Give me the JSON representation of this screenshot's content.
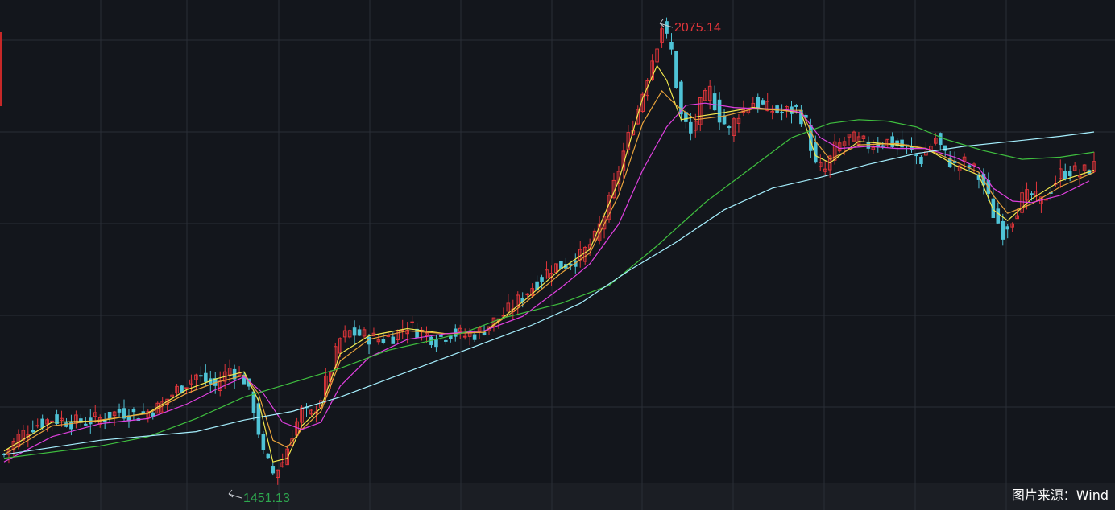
{
  "source": {
    "label": "图片来源：Wind"
  },
  "colors": {
    "background": "#13161c",
    "grid": "#2a2e36",
    "up_candle": "#e0353a",
    "down_candle": "#4fc3d6",
    "high_label": "#e0353a",
    "low_label": "#2ea84f"
  },
  "chart_data": {
    "type": "candlestick",
    "grid": true,
    "ylim": [
      1430,
      2100
    ],
    "annotations": [
      {
        "kind": "high",
        "label": "2075.14",
        "value": 2075.14
      },
      {
        "kind": "low",
        "label": "1451.13",
        "value": 1451.13
      }
    ],
    "price_path": [
      [
        0,
        1480
      ],
      [
        3,
        1505
      ],
      [
        6,
        1520
      ],
      [
        10,
        1530
      ],
      [
        15,
        1525
      ],
      [
        20,
        1530
      ],
      [
        24,
        1540
      ],
      [
        28,
        1535
      ],
      [
        32,
        1545
      ],
      [
        36,
        1570
      ],
      [
        40,
        1590
      ],
      [
        44,
        1575
      ],
      [
        47,
        1600
      ],
      [
        50,
        1585
      ],
      [
        52,
        1545
      ],
      [
        54,
        1480
      ],
      [
        56,
        1455
      ],
      [
        58,
        1470
      ],
      [
        60,
        1510
      ],
      [
        62,
        1540
      ],
      [
        64,
        1535
      ],
      [
        66,
        1560
      ],
      [
        68,
        1600
      ],
      [
        70,
        1640
      ],
      [
        72,
        1650
      ],
      [
        75,
        1645
      ],
      [
        78,
        1640
      ],
      [
        81,
        1645
      ],
      [
        84,
        1660
      ],
      [
        87,
        1650
      ],
      [
        90,
        1640
      ],
      [
        93,
        1650
      ],
      [
        96,
        1645
      ],
      [
        99,
        1650
      ],
      [
        102,
        1665
      ],
      [
        105,
        1680
      ],
      [
        108,
        1700
      ],
      [
        111,
        1720
      ],
      [
        114,
        1740
      ],
      [
        117,
        1745
      ],
      [
        120,
        1755
      ],
      [
        123,
        1780
      ],
      [
        126,
        1830
      ],
      [
        129,
        1900
      ],
      [
        132,
        1960
      ],
      [
        135,
        2030
      ],
      [
        137,
        2075
      ],
      [
        139,
        2040
      ],
      [
        141,
        1950
      ],
      [
        143,
        1925
      ],
      [
        145,
        1965
      ],
      [
        147,
        1985
      ],
      [
        149,
        1950
      ],
      [
        151,
        1930
      ],
      [
        153,
        1955
      ],
      [
        156,
        1970
      ],
      [
        159,
        1960
      ],
      [
        162,
        1955
      ],
      [
        165,
        1960
      ],
      [
        167,
        1940
      ],
      [
        169,
        1880
      ],
      [
        171,
        1875
      ],
      [
        173,
        1905
      ],
      [
        176,
        1920
      ],
      [
        180,
        1910
      ],
      [
        184,
        1915
      ],
      [
        188,
        1905
      ],
      [
        191,
        1890
      ],
      [
        194,
        1920
      ],
      [
        196,
        1895
      ],
      [
        198,
        1880
      ],
      [
        200,
        1885
      ],
      [
        202,
        1875
      ],
      [
        204,
        1855
      ],
      [
        206,
        1815
      ],
      [
        208,
        1790
      ],
      [
        210,
        1810
      ],
      [
        212,
        1835
      ],
      [
        214,
        1840
      ],
      [
        216,
        1830
      ],
      [
        218,
        1850
      ],
      [
        220,
        1870
      ],
      [
        222,
        1875
      ],
      [
        224,
        1870
      ],
      [
        227,
        1880
      ]
    ],
    "moving_averages": [
      {
        "color": "#f2e94e",
        "values": [
          [
            0,
            1485
          ],
          [
            10,
            1525
          ],
          [
            20,
            1527
          ],
          [
            30,
            1538
          ],
          [
            38,
            1570
          ],
          [
            44,
            1585
          ],
          [
            50,
            1595
          ],
          [
            53,
            1555
          ],
          [
            56,
            1470
          ],
          [
            59,
            1475
          ],
          [
            62,
            1520
          ],
          [
            66,
            1545
          ],
          [
            70,
            1620
          ],
          [
            76,
            1645
          ],
          [
            84,
            1655
          ],
          [
            92,
            1648
          ],
          [
            100,
            1650
          ],
          [
            108,
            1692
          ],
          [
            116,
            1738
          ],
          [
            122,
            1765
          ],
          [
            128,
            1860
          ],
          [
            133,
            1975
          ],
          [
            136,
            2020
          ],
          [
            138,
            2000
          ],
          [
            141,
            1945
          ],
          [
            145,
            1950
          ],
          [
            150,
            1955
          ],
          [
            156,
            1962
          ],
          [
            162,
            1958
          ],
          [
            166,
            1955
          ],
          [
            169,
            1895
          ],
          [
            172,
            1885
          ],
          [
            178,
            1915
          ],
          [
            186,
            1910
          ],
          [
            192,
            1905
          ],
          [
            198,
            1882
          ],
          [
            203,
            1868
          ],
          [
            206,
            1820
          ],
          [
            209,
            1805
          ],
          [
            214,
            1835
          ],
          [
            220,
            1860
          ],
          [
            227,
            1875
          ]
        ]
      },
      {
        "color": "#e8a33c",
        "values": [
          [
            0,
            1480
          ],
          [
            10,
            1520
          ],
          [
            20,
            1528
          ],
          [
            30,
            1537
          ],
          [
            38,
            1565
          ],
          [
            44,
            1580
          ],
          [
            50,
            1590
          ],
          [
            53,
            1565
          ],
          [
            56,
            1500
          ],
          [
            59,
            1490
          ],
          [
            62,
            1515
          ],
          [
            66,
            1540
          ],
          [
            70,
            1610
          ],
          [
            76,
            1640
          ],
          [
            84,
            1652
          ],
          [
            92,
            1648
          ],
          [
            100,
            1650
          ],
          [
            108,
            1688
          ],
          [
            116,
            1732
          ],
          [
            122,
            1760
          ],
          [
            128,
            1840
          ],
          [
            133,
            1940
          ],
          [
            137,
            1985
          ],
          [
            140,
            1965
          ],
          [
            144,
            1945
          ],
          [
            150,
            1950
          ],
          [
            156,
            1960
          ],
          [
            162,
            1958
          ],
          [
            166,
            1958
          ],
          [
            169,
            1915
          ],
          [
            172,
            1890
          ],
          [
            178,
            1910
          ],
          [
            186,
            1912
          ],
          [
            192,
            1905
          ],
          [
            198,
            1887
          ],
          [
            203,
            1872
          ],
          [
            206,
            1840
          ],
          [
            209,
            1815
          ],
          [
            214,
            1828
          ],
          [
            220,
            1852
          ],
          [
            227,
            1872
          ]
        ]
      },
      {
        "color": "#e040e0",
        "values": [
          [
            0,
            1470
          ],
          [
            10,
            1505
          ],
          [
            20,
            1523
          ],
          [
            30,
            1530
          ],
          [
            38,
            1550
          ],
          [
            44,
            1570
          ],
          [
            50,
            1588
          ],
          [
            54,
            1565
          ],
          [
            58,
            1525
          ],
          [
            62,
            1515
          ],
          [
            66,
            1525
          ],
          [
            70,
            1575
          ],
          [
            76,
            1615
          ],
          [
            84,
            1640
          ],
          [
            92,
            1648
          ],
          [
            100,
            1652
          ],
          [
            108,
            1672
          ],
          [
            116,
            1712
          ],
          [
            122,
            1745
          ],
          [
            128,
            1800
          ],
          [
            133,
            1875
          ],
          [
            138,
            1935
          ],
          [
            142,
            1965
          ],
          [
            146,
            1968
          ],
          [
            152,
            1962
          ],
          [
            158,
            1960
          ],
          [
            162,
            1960
          ],
          [
            166,
            1955
          ],
          [
            170,
            1920
          ],
          [
            174,
            1905
          ],
          [
            180,
            1908
          ],
          [
            186,
            1905
          ],
          [
            192,
            1905
          ],
          [
            198,
            1893
          ],
          [
            203,
            1878
          ],
          [
            206,
            1850
          ],
          [
            210,
            1832
          ],
          [
            214,
            1830
          ],
          [
            220,
            1840
          ],
          [
            226,
            1860
          ]
        ]
      },
      {
        "color": "#3fbf3f",
        "values": [
          [
            0,
            1475
          ],
          [
            20,
            1492
          ],
          [
            30,
            1505
          ],
          [
            40,
            1530
          ],
          [
            50,
            1560
          ],
          [
            60,
            1580
          ],
          [
            70,
            1600
          ],
          [
            80,
            1625
          ],
          [
            90,
            1640
          ],
          [
            96,
            1650
          ],
          [
            104,
            1670
          ],
          [
            116,
            1690
          ],
          [
            126,
            1715
          ],
          [
            136,
            1770
          ],
          [
            146,
            1830
          ],
          [
            156,
            1880
          ],
          [
            164,
            1920
          ],
          [
            172,
            1940
          ],
          [
            178,
            1945
          ],
          [
            184,
            1943
          ],
          [
            190,
            1935
          ],
          [
            196,
            1918
          ],
          [
            204,
            1902
          ],
          [
            212,
            1890
          ],
          [
            220,
            1893
          ],
          [
            227,
            1900
          ]
        ]
      },
      {
        "color": "#a6f0ff",
        "values": [
          [
            0,
            1480
          ],
          [
            20,
            1500
          ],
          [
            40,
            1512
          ],
          [
            50,
            1528
          ],
          [
            60,
            1540
          ],
          [
            70,
            1560
          ],
          [
            80,
            1585
          ],
          [
            90,
            1610
          ],
          [
            100,
            1635
          ],
          [
            110,
            1660
          ],
          [
            120,
            1690
          ],
          [
            130,
            1735
          ],
          [
            140,
            1775
          ],
          [
            150,
            1820
          ],
          [
            160,
            1850
          ],
          [
            170,
            1865
          ],
          [
            180,
            1883
          ],
          [
            190,
            1898
          ],
          [
            200,
            1908
          ],
          [
            210,
            1915
          ],
          [
            220,
            1922
          ],
          [
            227,
            1928
          ]
        ]
      }
    ]
  }
}
